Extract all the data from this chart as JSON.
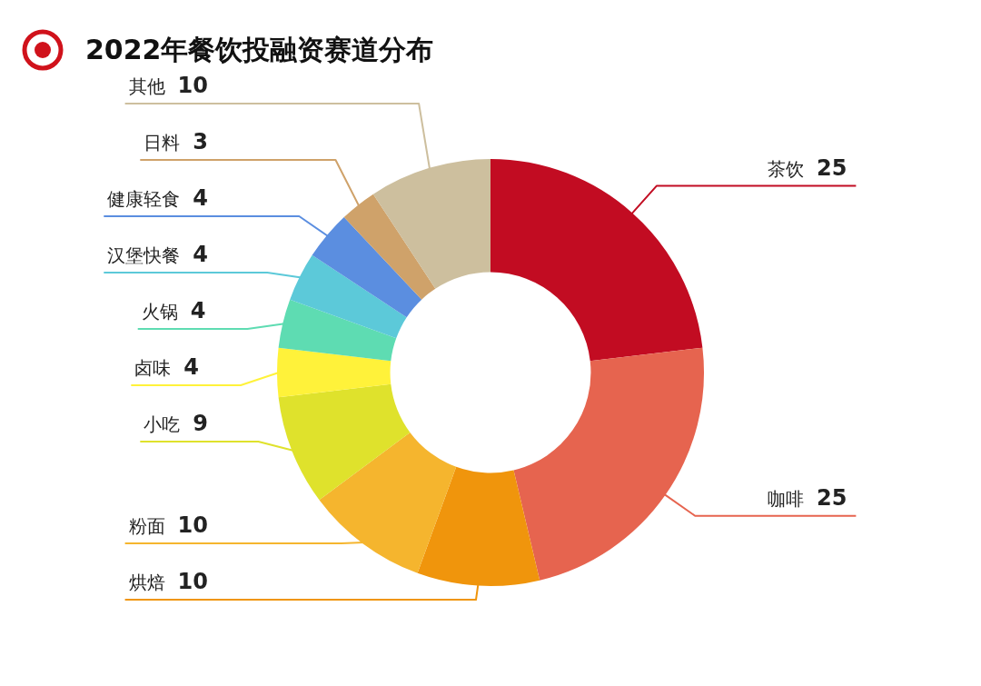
{
  "chart_data": {
    "type": "donut",
    "title": "2022年餐饮投融资赛道分布",
    "categories": [
      "茶饮",
      "咖啡",
      "烘焙",
      "粉面",
      "小吃",
      "卤味",
      "火锅",
      "汉堡快餐",
      "健康轻食",
      "日料",
      "其他"
    ],
    "values": [
      25,
      25,
      10,
      10,
      9,
      4,
      4,
      4,
      4,
      3,
      10
    ],
    "colors": [
      "#c20c22",
      "#e6644f",
      "#f0950c",
      "#f5b52e",
      "#dfe22c",
      "#fff23a",
      "#5edcb2",
      "#5cc9d9",
      "#5b8ee0",
      "#cfa26a",
      "#cdbf9e"
    ],
    "data_labels": true,
    "legend": false
  }
}
